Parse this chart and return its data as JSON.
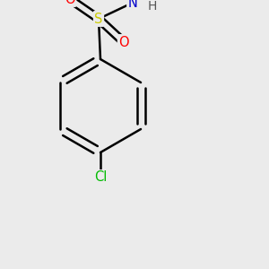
{
  "bg_color": "#ebebeb",
  "bond_color": "#000000",
  "bond_width": 1.8,
  "dbo": 0.015,
  "atoms": {
    "Cl": {
      "color": "#00bb00",
      "fontsize": 10.5
    },
    "S": {
      "color": "#cccc00",
      "fontsize": 10.5
    },
    "O": {
      "color": "#ff0000",
      "fontsize": 10.5
    },
    "N": {
      "color": "#0000cc",
      "fontsize": 10.5
    },
    "H": {
      "color": "#555555",
      "fontsize": 10.0
    }
  },
  "figsize": [
    3.0,
    3.0
  ],
  "dpi": 100,
  "xlim": [
    0,
    300
  ],
  "ylim": [
    0,
    300
  ]
}
